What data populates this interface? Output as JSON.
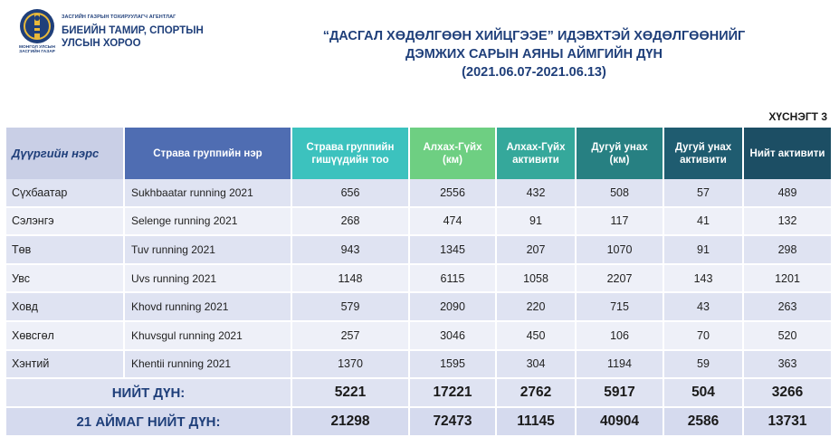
{
  "header": {
    "agency_small": "ЗАСГИЙН ГАЗРЫН ТОХИРУУЛАГЧ АГЕНТЛАГ",
    "agency_line1": "БИЕИЙН ТАМИР, СПОРТЫН",
    "agency_line2": "УЛСЫН ХОРОО",
    "emblem_caption_1": "МОНГОЛ УЛСЫН",
    "emblem_caption_2": "ЗАСГИЙН ГАЗАР"
  },
  "title": {
    "line1": "“ДАСГАЛ ХӨДӨЛГӨӨН  ХИЙЦГЭЭЕ” ИДЭВХТЭЙ ХӨДӨЛГӨӨНИЙГ",
    "line2": "ДЭМЖИХ САРЫН АЯНЫ АЙМГИЙН ДҮН",
    "line3": "(2021.06.07-2021.06.13)"
  },
  "table_ref": "ХҮСНЭГТ 3",
  "table": {
    "headers": [
      "Дүүргийн нэрс",
      "Страва группийн нэр",
      "Страва группийн гишүүдийн тоо",
      "Алхах-Гүйх (км)",
      "Алхах-Гүйх активити",
      "Дугуй унах (км)",
      "Дугуй унах активити",
      "Нийт активити"
    ],
    "rows": [
      {
        "province": "Сүхбаатар",
        "group": "Sukhbaatar running 2021",
        "members": "656",
        "walk_km": "2556",
        "walk_act": "432",
        "bike_km": "508",
        "bike_act": "57",
        "total_act": "489"
      },
      {
        "province": "Сэлэнгэ",
        "group": "Selenge running 2021",
        "members": "268",
        "walk_km": "474",
        "walk_act": "91",
        "bike_km": "117",
        "bike_act": "41",
        "total_act": "132"
      },
      {
        "province": "Төв",
        "group": "Tuv running 2021",
        "members": "943",
        "walk_km": "1345",
        "walk_act": "207",
        "bike_km": "1070",
        "bike_act": "91",
        "total_act": "298"
      },
      {
        "province": "Увс",
        "group": "Uvs running 2021",
        "members": "1148",
        "walk_km": "6115",
        "walk_act": "1058",
        "bike_km": "2207",
        "bike_act": "143",
        "total_act": "1201"
      },
      {
        "province": "Ховд",
        "group": "Khovd running 2021",
        "members": "579",
        "walk_km": "2090",
        "walk_act": "220",
        "bike_km": "715",
        "bike_act": "43",
        "total_act": "263"
      },
      {
        "province": "Хөвсгөл",
        "group": "Khuvsgul running 2021",
        "members": "257",
        "walk_km": "3046",
        "walk_act": "450",
        "bike_km": "106",
        "bike_act": "70",
        "total_act": "520"
      },
      {
        "province": "Хэнтий",
        "group": "Khentii running 2021",
        "members": "1370",
        "walk_km": "1595",
        "walk_act": "304",
        "bike_km": "1194",
        "bike_act": "59",
        "total_act": "363"
      }
    ],
    "total": {
      "label": "НИЙТ ДҮН:",
      "members": "5221",
      "walk_km": "17221",
      "walk_act": "2762",
      "bike_km": "5917",
      "bike_act": "504",
      "total_act": "3266"
    },
    "grand_total": {
      "label": "21 АЙМАГ НИЙТ ДҮН:",
      "members": "21298",
      "walk_km": "72473",
      "walk_act": "11145",
      "bike_km": "40904",
      "bike_act": "2586",
      "total_act": "13731"
    }
  },
  "colors": {
    "brand_blue": "#1f3f7a",
    "header_grey": "#c9cfe6",
    "header_blue": "#4f6db2",
    "header_teal": "#3cc2be",
    "header_green": "#6ecf82",
    "header_dark_teal": "#1f5c70"
  }
}
